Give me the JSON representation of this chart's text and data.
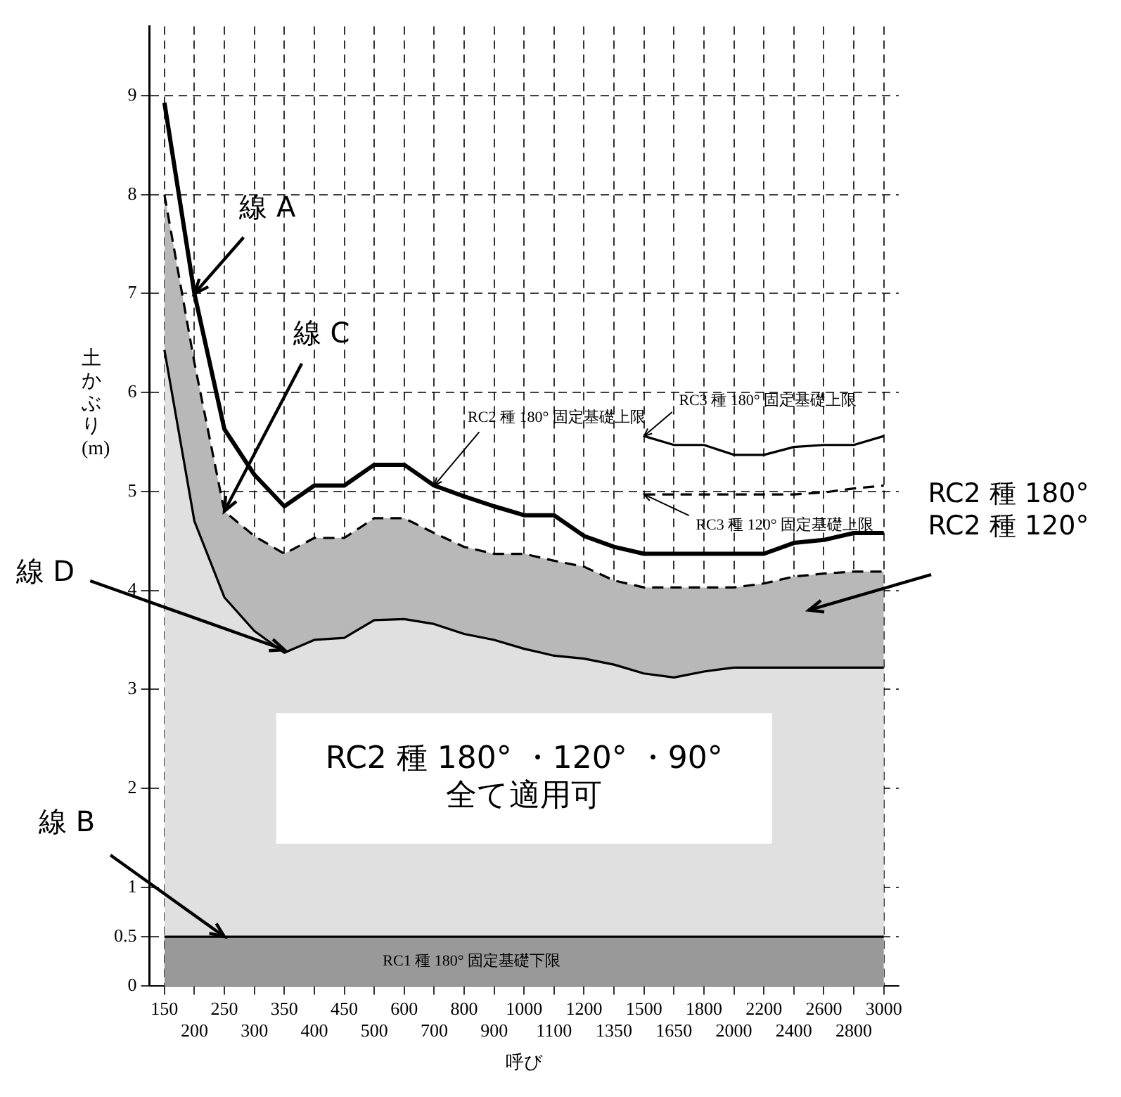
{
  "chart_data": {
    "type": "line",
    "xlabel": "呼び",
    "ylabel": "土かぶり(m)",
    "categories": [
      "150",
      "200",
      "250",
      "300",
      "350",
      "400",
      "450",
      "500",
      "600",
      "700",
      "800",
      "900",
      "1000",
      "1100",
      "1200",
      "1350",
      "1500",
      "1650",
      "1800",
      "2000",
      "2200",
      "2400",
      "2600",
      "2800",
      "3000"
    ],
    "series": [
      {
        "type": "line",
        "color": "#000000",
        "values": [
          8.93,
          7.0,
          5.63,
          5.17,
          4.85,
          5.06,
          5.06,
          5.27,
          5.27,
          5.06,
          4.95,
          4.85,
          4.76,
          4.76,
          4.55,
          4.44,
          4.37,
          4.37,
          4.37,
          4.37,
          4.37,
          4.48,
          4.51,
          4.58,
          4.58
        ]
      },
      {
        "type": "area",
        "color": "#000000",
        "line_style": "dashed",
        "values": [
          8.0,
          6.3,
          4.8,
          4.55,
          4.37,
          4.53,
          4.53,
          4.73,
          4.73,
          4.58,
          4.44,
          4.37,
          4.37,
          4.3,
          4.24,
          4.1,
          4.03,
          4.03,
          4.03,
          4.03,
          4.07,
          4.14,
          4.17,
          4.19,
          4.19
        ]
      },
      {
        "type": "area",
        "color": "#000000",
        "values": [
          6.43,
          4.7,
          3.93,
          3.59,
          3.37,
          3.5,
          3.52,
          3.7,
          3.71,
          3.66,
          3.56,
          3.5,
          3.41,
          3.34,
          3.31,
          3.25,
          3.16,
          3.12,
          3.18,
          3.22,
          3.22,
          3.22,
          3.22,
          3.22,
          3.22
        ]
      },
      {
        "type": "area",
        "color": "#000000",
        "values": [
          0.5,
          0.5,
          0.5,
          0.5,
          0.5,
          0.5,
          0.5,
          0.5,
          0.5,
          0.5,
          0.5,
          0.5,
          0.5,
          0.5,
          0.5,
          0.5,
          0.5,
          0.5,
          0.5,
          0.5,
          0.5,
          0.5,
          0.5,
          0.5,
          0.5
        ]
      },
      {
        "type": "line",
        "color": "#000000",
        "values": [
          null,
          null,
          null,
          null,
          null,
          null,
          null,
          null,
          null,
          null,
          null,
          null,
          null,
          null,
          null,
          null,
          5.56,
          5.47,
          5.47,
          5.37,
          5.37,
          5.45,
          5.47,
          5.47,
          5.56
        ]
      },
      {
        "type": "line",
        "color": "#000000",
        "line_style": "dashed",
        "values": [
          null,
          null,
          null,
          null,
          null,
          null,
          null,
          null,
          null,
          null,
          null,
          null,
          null,
          null,
          null,
          null,
          4.97,
          4.97,
          4.97,
          4.97,
          4.97,
          4.97,
          4.99,
          5.03,
          5.06
        ]
      }
    ],
    "ylim": [
      0,
      9.7
    ],
    "yticks": [
      0,
      0.5,
      1,
      2,
      3,
      4,
      5,
      6,
      7,
      8,
      9
    ],
    "grid": true,
    "legend": false,
    "marker": "none",
    "annotations": [
      {
        "text": "線 A",
        "x": "200",
        "y": 7.0
      },
      {
        "text": "線 C",
        "x": "250",
        "y": 4.8
      },
      {
        "text": "線 D",
        "x": "350",
        "y": 3.4
      },
      {
        "text": "線 B",
        "x": "250",
        "y": 0.5
      },
      {
        "text": "RC2 種 180° 固定基礎上限",
        "x": "700",
        "y": 5.06
      },
      {
        "text": "RC3 種 180° 固定基礎上限",
        "x": "1500",
        "y": 5.56
      },
      {
        "text": "RC3 種 120° 固定基礎上限",
        "x": "1500",
        "y": 4.97
      },
      "RC2 種 180°\nRC2 種 120°",
      "RC2 種 180° ・120° ・90°\n全て適用可",
      "RC1 種 180° 固定基礎下限"
    ]
  }
}
